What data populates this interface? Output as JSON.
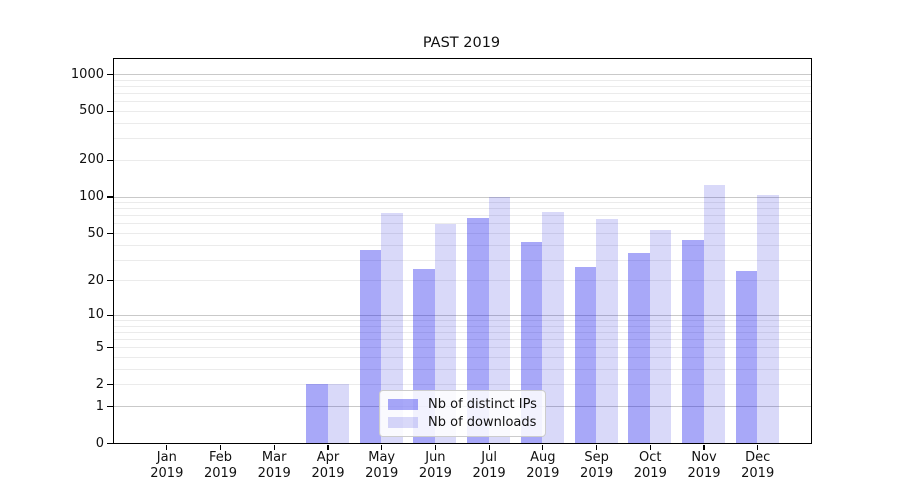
{
  "chart_data": {
    "type": "bar",
    "title": "PAST 2019",
    "categories": [
      "Jan 2019",
      "Feb 2019",
      "Mar 2019",
      "Apr 2019",
      "May 2019",
      "Jun 2019",
      "Jul 2019",
      "Aug 2019",
      "Sep 2019",
      "Oct 2019",
      "Nov 2019",
      "Dec 2019"
    ],
    "series": [
      {
        "name": "Nb of distinct IPs",
        "values": [
          0,
          0,
          0,
          2,
          36,
          25,
          67,
          42,
          26,
          34,
          44,
          24
        ],
        "color_apparent": "#a9a9f7",
        "fill": "rgba(15,15,235,0.36)"
      },
      {
        "name": "Nb of downloads",
        "values": [
          0,
          0,
          0,
          2,
          73,
          59,
          100,
          75,
          65,
          53,
          125,
          102
        ],
        "color_apparent": "#dcdcf9",
        "fill": "rgba(20,20,220,0.16)"
      }
    ],
    "xlabel": "",
    "ylabel": "",
    "y_axis": {
      "scale": "log10(1+x)",
      "tick_values": [
        0,
        1,
        2,
        5,
        10,
        20,
        50,
        100,
        200,
        500,
        1000
      ],
      "tick_labels": [
        "0",
        "1",
        "2",
        "5",
        "10",
        "20",
        "50",
        "100",
        "200",
        "500",
        "1000"
      ],
      "top_equivalent_value": 1324
    },
    "grid": {
      "major_values": [
        1,
        10,
        100,
        1000
      ],
      "major_color": "#c9c9c9",
      "minor_color": "#ebebeb"
    },
    "legend": {
      "position": "lower center",
      "entries": [
        "Nb of distinct IPs",
        "Nb of downloads"
      ]
    }
  }
}
